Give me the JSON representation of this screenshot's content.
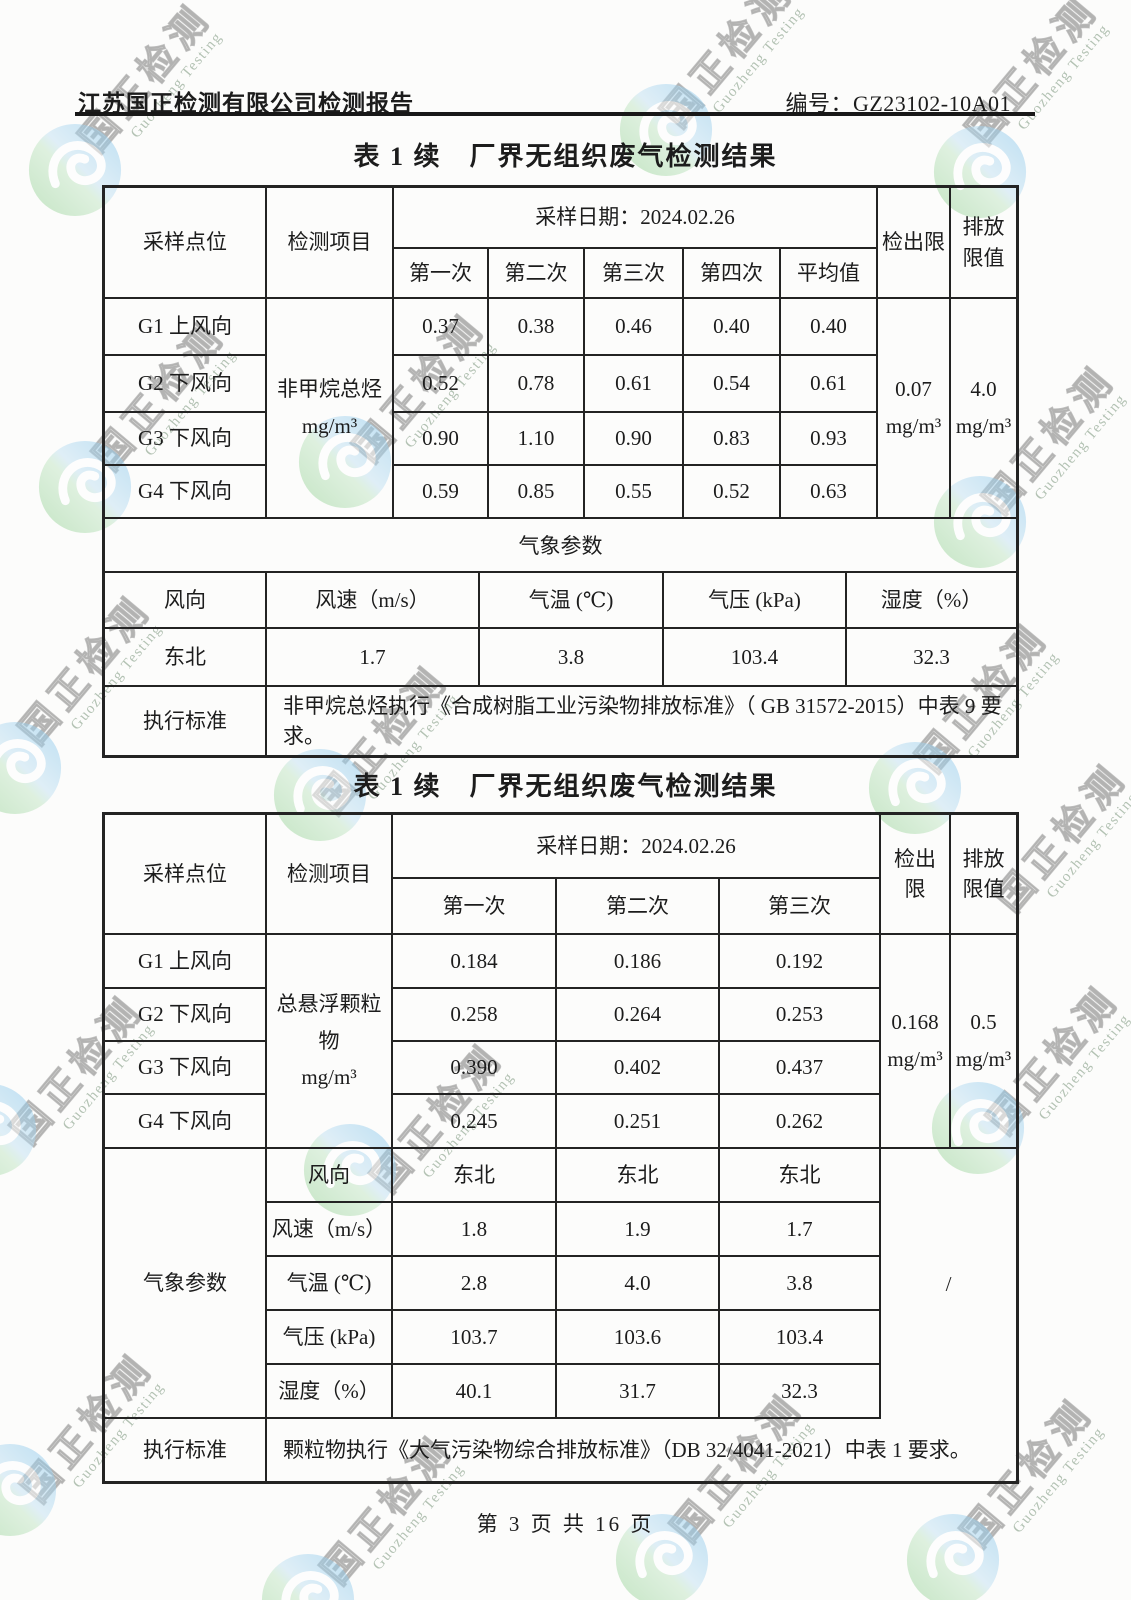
{
  "header": {
    "report_title": "江苏国正检测有限公司检测报告",
    "report_no": "编号：GZ23102-10A01"
  },
  "watermark": {
    "text": "国正检测",
    "subtext": "Guozheng Testing"
  },
  "footer": {
    "page_indicator": "第 3 页 共 16 页"
  },
  "table1": {
    "title": "表 1 续　厂界无组织废气检测结果",
    "headers": {
      "point": "采样点位",
      "item": "检测项目",
      "date": "采样日期：2024.02.26",
      "runs": [
        "第一次",
        "第二次",
        "第三次",
        "第四次",
        "平均值"
      ],
      "detection_limit": "检出限",
      "emission_limit": "排放限值"
    },
    "item": {
      "name": "非甲烷总烃",
      "unit": "mg/m³"
    },
    "rows": [
      {
        "point": "G1 上风向",
        "values": [
          "0.37",
          "0.38",
          "0.46",
          "0.40",
          "0.40"
        ]
      },
      {
        "point": "G2 下风向",
        "values": [
          "0.52",
          "0.78",
          "0.61",
          "0.54",
          "0.61"
        ]
      },
      {
        "point": "G3 下风向",
        "values": [
          "0.90",
          "1.10",
          "0.90",
          "0.83",
          "0.93"
        ]
      },
      {
        "point": "G4 下风向",
        "values": [
          "0.59",
          "0.85",
          "0.55",
          "0.52",
          "0.63"
        ]
      }
    ],
    "detection_limit": {
      "value": "0.07",
      "unit": "mg/m³"
    },
    "emission_limit": {
      "value": "4.0",
      "unit": "mg/m³"
    },
    "weather": {
      "banner": "气象参数",
      "headers": [
        "风向",
        "风速（m/s）",
        "气温 (℃)",
        "气压 (kPa)",
        "湿度（%）"
      ],
      "values": [
        "东北",
        "1.7",
        "3.8",
        "103.4",
        "32.3"
      ]
    },
    "standard": {
      "label": "执行标准",
      "text": "非甲烷总烃执行《合成树脂工业污染物排放标准》（ GB 31572-2015）中表 9 要求。"
    }
  },
  "table2": {
    "title": "表 1 续　厂界无组织废气检测结果",
    "headers": {
      "point": "采样点位",
      "item": "检测项目",
      "date": "采样日期：2024.02.26",
      "runs": [
        "第一次",
        "第二次",
        "第三次"
      ],
      "detection_limit": "检出限",
      "emission_limit": "排放限值"
    },
    "item": {
      "name": "总悬浮颗粒物",
      "unit": "mg/m³"
    },
    "rows": [
      {
        "point": "G1 上风向",
        "values": [
          "0.184",
          "0.186",
          "0.192"
        ]
      },
      {
        "point": "G2 下风向",
        "values": [
          "0.258",
          "0.264",
          "0.253"
        ]
      },
      {
        "point": "G3 下风向",
        "values": [
          "0.390",
          "0.402",
          "0.437"
        ]
      },
      {
        "point": "G4 下风向",
        "values": [
          "0.245",
          "0.251",
          "0.262"
        ]
      }
    ],
    "detection_limit": {
      "value": "0.168",
      "unit": "mg/m³"
    },
    "emission_limit": {
      "value": "0.5",
      "unit": "mg/m³"
    },
    "weather": {
      "label": "气象参数",
      "na": "/",
      "rows": [
        {
          "label": "风向",
          "values": [
            "东北",
            "东北",
            "东北"
          ]
        },
        {
          "label": "风速（m/s）",
          "values": [
            "1.8",
            "1.9",
            "1.7"
          ]
        },
        {
          "label": "气温 (℃)",
          "values": [
            "2.8",
            "4.0",
            "3.8"
          ]
        },
        {
          "label": "气压 (kPa)",
          "values": [
            "103.7",
            "103.6",
            "103.4"
          ]
        },
        {
          "label": "湿度（%）",
          "values": [
            "40.1",
            "31.7",
            "32.3"
          ]
        }
      ]
    },
    "standard": {
      "label": "执行标准",
      "text": "颗粒物执行《大气污染物综合排放标准》（DB 32/4041-2021）中表 1 要求。"
    }
  }
}
